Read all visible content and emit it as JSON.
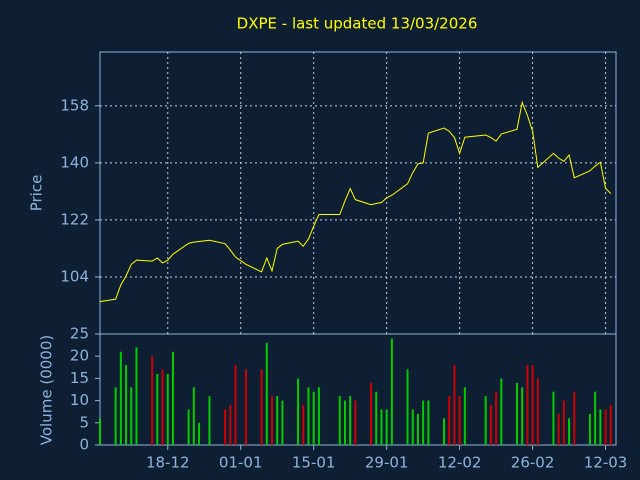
{
  "chart_data": [
    {
      "type": "line",
      "title": "DXPE - last updated 13/03/2026",
      "ylabel": "Price",
      "color": "#ffff00",
      "grid": true,
      "x": [
        0,
        3,
        4,
        5,
        6,
        7,
        10,
        11,
        12,
        13,
        14,
        17,
        18,
        19,
        21,
        24,
        25,
        26,
        28,
        31,
        32,
        33,
        34,
        35,
        38,
        39,
        40,
        41,
        42,
        46,
        47,
        48,
        49,
        52,
        53,
        54,
        55,
        56,
        59,
        60,
        61,
        62,
        63,
        66,
        67,
        68,
        69,
        70,
        74,
        75,
        76,
        77,
        80,
        81,
        82,
        83,
        84,
        87,
        88,
        89,
        90,
        91,
        94,
        95,
        96,
        97,
        98
      ],
      "values": [
        96.2,
        97,
        101.5,
        104.3,
        108,
        109.3,
        109,
        110,
        108.4,
        109.3,
        111.2,
        114.6,
        115,
        115.2,
        115.6,
        114.5,
        112.5,
        110.3,
        108,
        105.6,
        110,
        105.9,
        113,
        114.3,
        115.3,
        113.7,
        116,
        120,
        123.7,
        123.7,
        128,
        131.9,
        128.4,
        126.8,
        127.2,
        127.5,
        129,
        129.8,
        133.4,
        136.9,
        139.7,
        140,
        149.4,
        151,
        150,
        148,
        143,
        148.1,
        148.8,
        148,
        146.9,
        149.1,
        150.6,
        159.1,
        155,
        150,
        138.6,
        143,
        141.5,
        140.5,
        142.5,
        135.3,
        137.5,
        139,
        140.2,
        132,
        130.3
      ],
      "xlim": [
        0,
        99
      ],
      "ylim": [
        86,
        175
      ],
      "yticks": [
        104,
        122,
        140,
        158
      ]
    },
    {
      "type": "bar",
      "ylabel": "Volume (0000)",
      "up_color": "#00cc00",
      "down_color": "#cc0000",
      "values": [
        6,
        13,
        21,
        18,
        13,
        22,
        20,
        16,
        17,
        16,
        21,
        8,
        13,
        5,
        11,
        8,
        9,
        18,
        17,
        17,
        23,
        11,
        11,
        10,
        15,
        9,
        13,
        12,
        13,
        11,
        10,
        11,
        10,
        14,
        12,
        8,
        8,
        24,
        17,
        8,
        7,
        10,
        10,
        6,
        11,
        18,
        11,
        13,
        11,
        9,
        12,
        15,
        14,
        13,
        18,
        18,
        15,
        12,
        7,
        10,
        6,
        12,
        7,
        12,
        8,
        8,
        9
      ],
      "xlim": [
        0,
        99
      ],
      "ylim": [
        0,
        25
      ],
      "yticks": [
        0,
        5,
        10,
        15,
        20,
        25
      ],
      "xticks": [
        {
          "value": 13,
          "label": "18-12"
        },
        {
          "value": 27,
          "label": "01-01"
        },
        {
          "value": 41,
          "label": "15-01"
        },
        {
          "value": 55,
          "label": "29-01"
        },
        {
          "value": 69,
          "label": "12-02"
        },
        {
          "value": 83,
          "label": "26-02"
        },
        {
          "value": 97,
          "label": "12-03"
        }
      ]
    }
  ]
}
